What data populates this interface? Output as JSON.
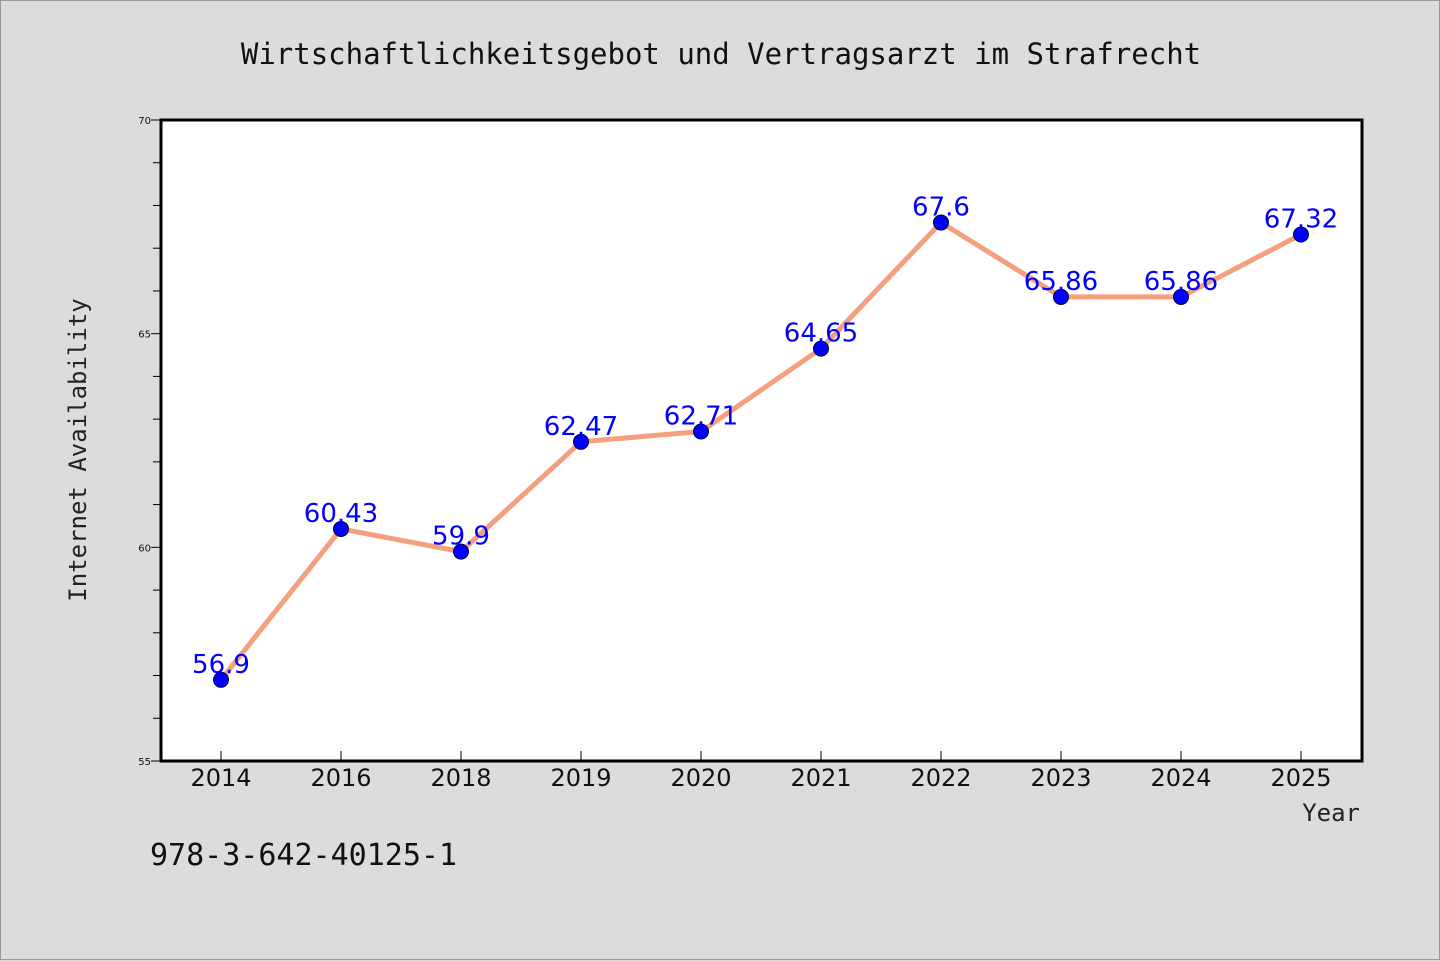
{
  "chart_data": {
    "type": "line",
    "title": "Wirtschaftlichkeitsgebot und Vertragsarzt im Strafrecht",
    "xlabel": "Year",
    "ylabel": "Internet Availability",
    "categories": [
      "2014",
      "2016",
      "2018",
      "2019",
      "2020",
      "2021",
      "2022",
      "2023",
      "2024",
      "2025"
    ],
    "values": [
      56.9,
      60.43,
      59.9,
      62.47,
      62.71,
      64.65,
      67.6,
      65.86,
      65.86,
      67.32
    ],
    "data_labels": [
      "56.9",
      "60.43",
      "59.9",
      "62.47",
      "62.71",
      "64.65",
      "67.6",
      "65.86",
      "65.86",
      "67.32"
    ],
    "ylim": [
      55,
      70
    ],
    "yticks": [
      "55",
      "60",
      "65",
      "70"
    ],
    "grid": false,
    "line_color": "#f4a07f",
    "marker_color": "#0000ff",
    "label_color": "#0000ff",
    "background_color": "#dcdcdc",
    "plot_background": "#ffffff"
  },
  "footer": {
    "isbn": "978-3-642-40125-1"
  }
}
